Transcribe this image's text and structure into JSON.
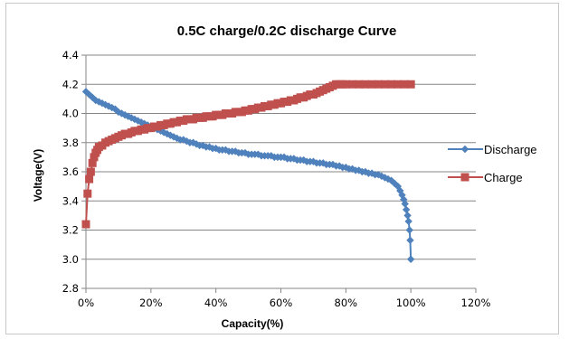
{
  "chart_data": {
    "type": "line",
    "title": "0.5C charge/0.2C discharge Curve",
    "xlabel": "Capacity(%)",
    "ylabel": "Voltage(V)",
    "xlim": [
      0,
      120
    ],
    "ylim": [
      2.8,
      4.4
    ],
    "x_ticks": [
      "0%",
      "20%",
      "40%",
      "60%",
      "80%",
      "100%",
      "120%"
    ],
    "y_ticks": [
      "2.8",
      "3.0",
      "3.2",
      "3.4",
      "3.6",
      "3.8",
      "4.0",
      "4.2",
      "4.4"
    ],
    "grid": true,
    "legend_position": "right",
    "series": [
      {
        "name": "Discharge",
        "color": "#4f81bd",
        "marker": "diamond",
        "points": [
          [
            0,
            4.15
          ],
          [
            1,
            4.13
          ],
          [
            2,
            4.11
          ],
          [
            3,
            4.09
          ],
          [
            4,
            4.08
          ],
          [
            5,
            4.07
          ],
          [
            6,
            4.06
          ],
          [
            7,
            4.05
          ],
          [
            8,
            4.04
          ],
          [
            9,
            4.03
          ],
          [
            10,
            4.01
          ],
          [
            11,
            4.0
          ],
          [
            12,
            3.99
          ],
          [
            13,
            3.98
          ],
          [
            14,
            3.97
          ],
          [
            15,
            3.96
          ],
          [
            16,
            3.95
          ],
          [
            17,
            3.94
          ],
          [
            18,
            3.93
          ],
          [
            19,
            3.92
          ],
          [
            20,
            3.91
          ],
          [
            21,
            3.9
          ],
          [
            22,
            3.89
          ],
          [
            23,
            3.88
          ],
          [
            24,
            3.87
          ],
          [
            25,
            3.86
          ],
          [
            26,
            3.85
          ],
          [
            27,
            3.84
          ],
          [
            28,
            3.83
          ],
          [
            29,
            3.82
          ],
          [
            30,
            3.82
          ],
          [
            31,
            3.81
          ],
          [
            32,
            3.8
          ],
          [
            33,
            3.8
          ],
          [
            34,
            3.79
          ],
          [
            35,
            3.78
          ],
          [
            36,
            3.78
          ],
          [
            37,
            3.77
          ],
          [
            38,
            3.77
          ],
          [
            39,
            3.76
          ],
          [
            40,
            3.76
          ],
          [
            41,
            3.75
          ],
          [
            42,
            3.75
          ],
          [
            43,
            3.75
          ],
          [
            44,
            3.74
          ],
          [
            45,
            3.74
          ],
          [
            46,
            3.74
          ],
          [
            47,
            3.73
          ],
          [
            48,
            3.73
          ],
          [
            49,
            3.73
          ],
          [
            50,
            3.72
          ],
          [
            51,
            3.72
          ],
          [
            52,
            3.72
          ],
          [
            53,
            3.72
          ],
          [
            54,
            3.71
          ],
          [
            55,
            3.71
          ],
          [
            56,
            3.71
          ],
          [
            57,
            3.71
          ],
          [
            58,
            3.7
          ],
          [
            59,
            3.7
          ],
          [
            60,
            3.7
          ],
          [
            61,
            3.7
          ],
          [
            62,
            3.69
          ],
          [
            63,
            3.69
          ],
          [
            64,
            3.69
          ],
          [
            65,
            3.68
          ],
          [
            66,
            3.68
          ],
          [
            67,
            3.68
          ],
          [
            68,
            3.67
          ],
          [
            69,
            3.67
          ],
          [
            70,
            3.67
          ],
          [
            71,
            3.66
          ],
          [
            72,
            3.66
          ],
          [
            73,
            3.66
          ],
          [
            74,
            3.65
          ],
          [
            75,
            3.65
          ],
          [
            76,
            3.65
          ],
          [
            77,
            3.64
          ],
          [
            78,
            3.64
          ],
          [
            79,
            3.63
          ],
          [
            80,
            3.63
          ],
          [
            81,
            3.62
          ],
          [
            82,
            3.62
          ],
          [
            83,
            3.61
          ],
          [
            84,
            3.61
          ],
          [
            85,
            3.6
          ],
          [
            86,
            3.6
          ],
          [
            87,
            3.59
          ],
          [
            88,
            3.59
          ],
          [
            89,
            3.58
          ],
          [
            90,
            3.58
          ],
          [
            91,
            3.57
          ],
          [
            92,
            3.56
          ],
          [
            93,
            3.55
          ],
          [
            94,
            3.54
          ],
          [
            95,
            3.52
          ],
          [
            96,
            3.5
          ],
          [
            96.7,
            3.47
          ],
          [
            97.3,
            3.44
          ],
          [
            97.8,
            3.41
          ],
          [
            98.2,
            3.38
          ],
          [
            98.6,
            3.34
          ],
          [
            99,
            3.3
          ],
          [
            99.3,
            3.26
          ],
          [
            99.6,
            3.2
          ],
          [
            99.8,
            3.13
          ],
          [
            100,
            3.0
          ]
        ]
      },
      {
        "name": "Charge",
        "color": "#c0504d",
        "marker": "square",
        "points": [
          [
            0,
            3.24
          ],
          [
            0.5,
            3.45
          ],
          [
            1,
            3.55
          ],
          [
            1.5,
            3.6
          ],
          [
            2,
            3.66
          ],
          [
            2.5,
            3.7
          ],
          [
            3,
            3.73
          ],
          [
            3.5,
            3.75
          ],
          [
            4,
            3.77
          ],
          [
            5,
            3.78
          ],
          [
            6,
            3.8
          ],
          [
            7,
            3.81
          ],
          [
            8,
            3.82
          ],
          [
            9,
            3.83
          ],
          [
            10,
            3.84
          ],
          [
            11,
            3.85
          ],
          [
            12,
            3.86
          ],
          [
            13,
            3.86
          ],
          [
            14,
            3.87
          ],
          [
            15,
            3.88
          ],
          [
            16,
            3.88
          ],
          [
            17,
            3.89
          ],
          [
            18,
            3.89
          ],
          [
            19,
            3.9
          ],
          [
            20,
            3.9
          ],
          [
            21,
            3.91
          ],
          [
            22,
            3.91
          ],
          [
            23,
            3.92
          ],
          [
            24,
            3.92
          ],
          [
            25,
            3.93
          ],
          [
            26,
            3.93
          ],
          [
            27,
            3.94
          ],
          [
            28,
            3.94
          ],
          [
            29,
            3.95
          ],
          [
            30,
            3.95
          ],
          [
            31,
            3.96
          ],
          [
            32,
            3.96
          ],
          [
            33,
            3.96
          ],
          [
            34,
            3.97
          ],
          [
            35,
            3.97
          ],
          [
            36,
            3.97
          ],
          [
            37,
            3.98
          ],
          [
            38,
            3.98
          ],
          [
            39,
            3.98
          ],
          [
            40,
            3.99
          ],
          [
            41,
            3.99
          ],
          [
            42,
            3.99
          ],
          [
            43,
            4.0
          ],
          [
            44,
            4.0
          ],
          [
            45,
            4.0
          ],
          [
            46,
            4.01
          ],
          [
            47,
            4.01
          ],
          [
            48,
            4.01
          ],
          [
            49,
            4.02
          ],
          [
            50,
            4.02
          ],
          [
            51,
            4.03
          ],
          [
            52,
            4.03
          ],
          [
            53,
            4.04
          ],
          [
            54,
            4.04
          ],
          [
            55,
            4.05
          ],
          [
            56,
            4.05
          ],
          [
            57,
            4.06
          ],
          [
            58,
            4.06
          ],
          [
            59,
            4.07
          ],
          [
            60,
            4.07
          ],
          [
            61,
            4.08
          ],
          [
            62,
            4.08
          ],
          [
            63,
            4.09
          ],
          [
            64,
            4.09
          ],
          [
            65,
            4.1
          ],
          [
            66,
            4.11
          ],
          [
            67,
            4.11
          ],
          [
            68,
            4.12
          ],
          [
            69,
            4.13
          ],
          [
            70,
            4.13
          ],
          [
            71,
            4.14
          ],
          [
            72,
            4.15
          ],
          [
            73,
            4.16
          ],
          [
            74,
            4.17
          ],
          [
            75,
            4.18
          ],
          [
            76,
            4.19
          ],
          [
            77,
            4.2
          ],
          [
            78,
            4.2
          ],
          [
            79,
            4.2
          ],
          [
            80,
            4.2
          ],
          [
            82,
            4.2
          ],
          [
            84,
            4.2
          ],
          [
            86,
            4.2
          ],
          [
            88,
            4.2
          ],
          [
            90,
            4.2
          ],
          [
            92,
            4.2
          ],
          [
            94,
            4.2
          ],
          [
            96,
            4.2
          ],
          [
            98,
            4.2
          ],
          [
            100,
            4.2
          ]
        ]
      }
    ]
  }
}
